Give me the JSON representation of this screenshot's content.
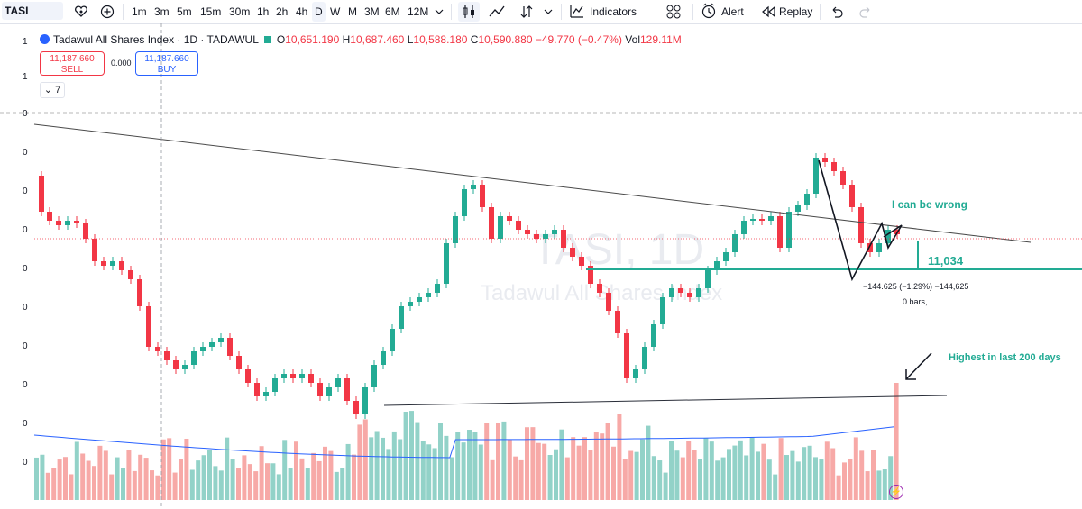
{
  "toolbar": {
    "symbol": "TASI",
    "intervals": [
      "1m",
      "3m",
      "5m",
      "15m",
      "30m",
      "1h",
      "2h",
      "4h",
      "D",
      "W",
      "M",
      "3M",
      "6M",
      "12M"
    ],
    "selected_interval": "D",
    "indicators_label": "Indicators",
    "alert_label": "Alert",
    "replay_label": "Replay"
  },
  "legend": {
    "title": "Tadawul All Shares Index · 1D · TADAWUL",
    "open_label": "O",
    "open": "10,651.190",
    "high_label": "H",
    "high": "10,687.460",
    "low_label": "L",
    "low": "10,588.180",
    "close_label": "C",
    "close": "10,590.880",
    "change": "−49.770 (−0.47%)",
    "vol_label": "Vol",
    "vol": "129.11M"
  },
  "trade": {
    "sell_price": "11,187.660",
    "sell_label": "SELL",
    "spread": "0.000",
    "buy_price": "11,187.660",
    "buy_label": "BUY"
  },
  "collapse_count": "7",
  "price_axis_labels": [
    "1",
    "1",
    "0",
    "0",
    "0",
    "0",
    "0",
    "0",
    "0",
    "0",
    "0",
    "0"
  ],
  "annotations": {
    "note": "I can be wrong",
    "level": "11,034",
    "measure": "−144.625 (−1.29%) −144,625",
    "bars": "0 bars,",
    "highest": "Highest in last 200 days"
  },
  "watermark": {
    "symbol": "TASI, 1D",
    "name": "Tadawul All Shares Index"
  },
  "colors": {
    "up": "#22ab94",
    "down": "#f23645",
    "vol_up": "#92d2c8",
    "vol_down": "#f7a9a7",
    "ma": "#2962ff",
    "accent": "#2962ff"
  },
  "icons": [
    "heart-icon",
    "add-symbol-icon",
    "chevron-down-icon",
    "candles-icon",
    "line-chart-icon",
    "compare-icon",
    "indicators-icon",
    "layout-icon",
    "alert-icon",
    "replay-icon",
    "undo-icon",
    "redo-icon",
    "flash-icon"
  ]
}
